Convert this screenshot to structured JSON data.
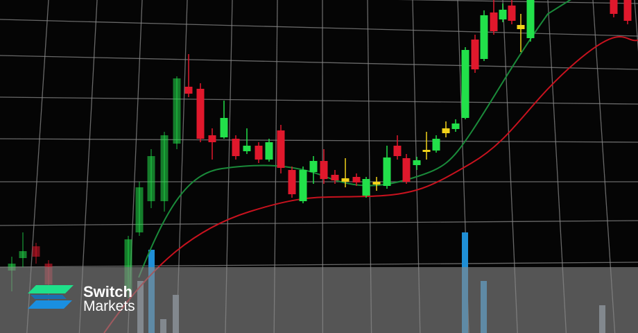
{
  "brand": {
    "name_line1": "Switch",
    "name_line2": "Markets"
  },
  "colors": {
    "bull": "#22e04a",
    "bear": "#e0182c",
    "doji": "#f2d21a",
    "volume": "#1f8fd6",
    "ma_fast": "#1a8a3a",
    "ma_slow": "#c8121e",
    "grid": "#8a8a8a",
    "logo_green": "#1fe08a",
    "logo_blue": "#1a7fd8"
  }
}
